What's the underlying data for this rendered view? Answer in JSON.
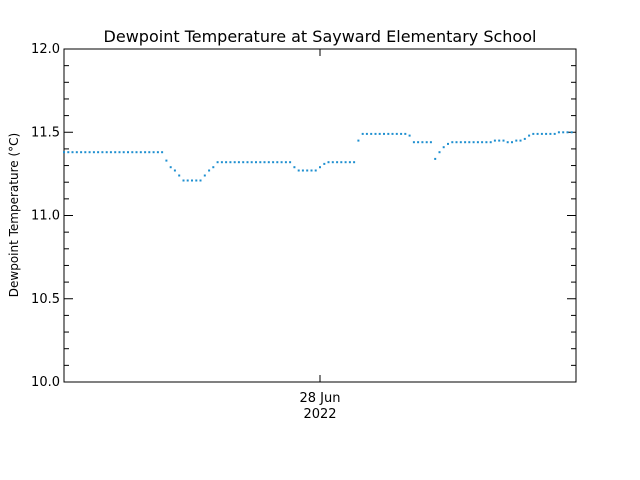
{
  "chart_data": {
    "type": "scatter",
    "title": "Dewpoint Temperature at Sayward Elementary School",
    "ylabel": "Dewpoint Temperature (°C)",
    "xlabel": "",
    "x_tick_labels": [
      {
        "line1": "28 Jun",
        "line2": "2022"
      }
    ],
    "y_tick_labels": [
      "10.0",
      "10.5",
      "11.0",
      "11.5",
      "12.0"
    ],
    "y_ticks": [
      10.0,
      10.5,
      11.0,
      11.5,
      12.0
    ],
    "ylim": [
      10.0,
      12.0
    ],
    "x_range_hours": [
      0,
      48
    ],
    "x_tick_hour": 24,
    "grid": false,
    "series": [
      {
        "color": "#1e8fd0",
        "marker": "dot",
        "points": [
          [
            0.0,
            11.38
          ],
          [
            0.4,
            11.38
          ],
          [
            0.8,
            11.38
          ],
          [
            1.2,
            11.38
          ],
          [
            1.6,
            11.38
          ],
          [
            2.0,
            11.38
          ],
          [
            2.4,
            11.38
          ],
          [
            2.8,
            11.38
          ],
          [
            3.2,
            11.38
          ],
          [
            3.6,
            11.38
          ],
          [
            4.0,
            11.38
          ],
          [
            4.4,
            11.38
          ],
          [
            4.8,
            11.38
          ],
          [
            5.2,
            11.38
          ],
          [
            5.6,
            11.38
          ],
          [
            6.0,
            11.38
          ],
          [
            6.4,
            11.38
          ],
          [
            6.8,
            11.38
          ],
          [
            7.2,
            11.38
          ],
          [
            7.6,
            11.38
          ],
          [
            8.0,
            11.38
          ],
          [
            8.4,
            11.38
          ],
          [
            8.8,
            11.38
          ],
          [
            9.2,
            11.38
          ],
          [
            9.6,
            11.33
          ],
          [
            10.0,
            11.29
          ],
          [
            10.4,
            11.27
          ],
          [
            10.8,
            11.24
          ],
          [
            11.2,
            11.21
          ],
          [
            11.6,
            11.21
          ],
          [
            12.0,
            11.21
          ],
          [
            12.4,
            11.21
          ],
          [
            12.8,
            11.21
          ],
          [
            13.2,
            11.24
          ],
          [
            13.6,
            11.27
          ],
          [
            14.0,
            11.29
          ],
          [
            14.4,
            11.32
          ],
          [
            14.8,
            11.32
          ],
          [
            15.2,
            11.32
          ],
          [
            15.6,
            11.32
          ],
          [
            16.0,
            11.32
          ],
          [
            16.4,
            11.32
          ],
          [
            16.8,
            11.32
          ],
          [
            17.2,
            11.32
          ],
          [
            17.6,
            11.32
          ],
          [
            18.0,
            11.32
          ],
          [
            18.4,
            11.32
          ],
          [
            18.8,
            11.32
          ],
          [
            19.2,
            11.32
          ],
          [
            19.6,
            11.32
          ],
          [
            20.0,
            11.32
          ],
          [
            20.4,
            11.32
          ],
          [
            20.8,
            11.32
          ],
          [
            21.2,
            11.32
          ],
          [
            21.6,
            11.29
          ],
          [
            22.0,
            11.27
          ],
          [
            22.4,
            11.27
          ],
          [
            22.8,
            11.27
          ],
          [
            23.2,
            11.27
          ],
          [
            23.6,
            11.27
          ],
          [
            24.0,
            11.29
          ],
          [
            24.4,
            11.31
          ],
          [
            24.8,
            11.32
          ],
          [
            25.2,
            11.32
          ],
          [
            25.6,
            11.32
          ],
          [
            26.0,
            11.32
          ],
          [
            26.4,
            11.32
          ],
          [
            26.8,
            11.32
          ],
          [
            27.2,
            11.32
          ],
          [
            27.6,
            11.45
          ],
          [
            28.0,
            11.49
          ],
          [
            28.4,
            11.49
          ],
          [
            28.8,
            11.49
          ],
          [
            29.2,
            11.49
          ],
          [
            29.6,
            11.49
          ],
          [
            30.0,
            11.49
          ],
          [
            30.4,
            11.49
          ],
          [
            30.8,
            11.49
          ],
          [
            31.2,
            11.49
          ],
          [
            31.6,
            11.49
          ],
          [
            32.0,
            11.49
          ],
          [
            32.4,
            11.48
          ],
          [
            32.8,
            11.44
          ],
          [
            33.2,
            11.44
          ],
          [
            33.6,
            11.44
          ],
          [
            34.0,
            11.44
          ],
          [
            34.4,
            11.44
          ],
          [
            34.8,
            11.34
          ],
          [
            35.2,
            11.38
          ],
          [
            35.6,
            11.41
          ],
          [
            36.0,
            11.43
          ],
          [
            36.4,
            11.44
          ],
          [
            36.8,
            11.44
          ],
          [
            37.2,
            11.44
          ],
          [
            37.6,
            11.44
          ],
          [
            38.0,
            11.44
          ],
          [
            38.4,
            11.44
          ],
          [
            38.8,
            11.44
          ],
          [
            39.2,
            11.44
          ],
          [
            39.6,
            11.44
          ],
          [
            40.0,
            11.44
          ],
          [
            40.4,
            11.45
          ],
          [
            40.8,
            11.45
          ],
          [
            41.2,
            11.45
          ],
          [
            41.6,
            11.44
          ],
          [
            42.0,
            11.44
          ],
          [
            42.4,
            11.45
          ],
          [
            42.8,
            11.45
          ],
          [
            43.2,
            11.46
          ],
          [
            43.6,
            11.48
          ],
          [
            44.0,
            11.49
          ],
          [
            44.4,
            11.49
          ],
          [
            44.8,
            11.49
          ],
          [
            45.2,
            11.49
          ],
          [
            45.6,
            11.49
          ],
          [
            46.0,
            11.49
          ],
          [
            46.4,
            11.5
          ],
          [
            46.8,
            11.5
          ],
          [
            47.2,
            11.5
          ],
          [
            47.6,
            11.5
          ]
        ]
      }
    ]
  }
}
